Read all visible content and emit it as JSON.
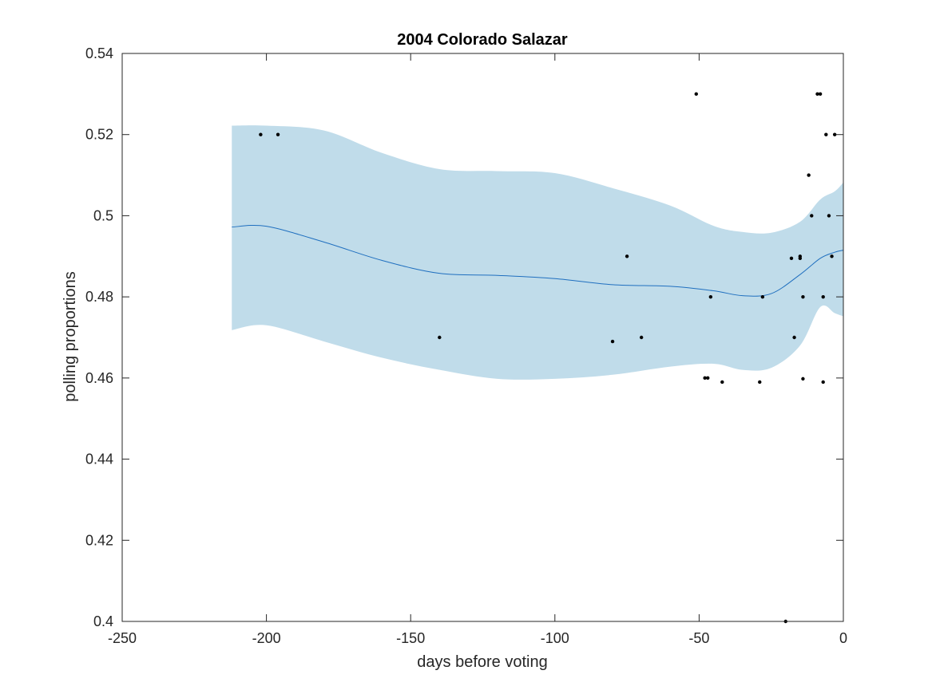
{
  "chart_data": {
    "type": "line",
    "title": "2004 Colorado Salazar",
    "xlabel": "days before voting",
    "ylabel": "polling proportions",
    "xlim": [
      -250,
      0
    ],
    "ylim": [
      0.4,
      0.54
    ],
    "xticks": [
      -250,
      -200,
      -150,
      -100,
      -50,
      0
    ],
    "xtick_labels": [
      "-250",
      "-200",
      "-150",
      "-100",
      "-50",
      "0"
    ],
    "yticks": [
      0.4,
      0.42,
      0.44,
      0.46,
      0.48,
      0.5,
      0.52,
      0.54
    ],
    "ytick_labels": [
      "0.4",
      "0.42",
      "0.44",
      "0.46",
      "0.48",
      "0.5",
      "0.52",
      "0.54"
    ],
    "grid": false,
    "colors": {
      "band": "#c0dcea",
      "line": "#1f6fbf",
      "points": "#000000",
      "axes": "#262626"
    },
    "series": [
      {
        "kind": "trend_line",
        "x": [
          -212,
          -200,
          -180,
          -160,
          -140,
          -120,
          -100,
          -80,
          -60,
          -45,
          -35,
          -25,
          -15,
          -8,
          -3,
          0
        ],
        "y": [
          0.4972,
          0.4974,
          0.4935,
          0.489,
          0.4858,
          0.4853,
          0.4845,
          0.483,
          0.4826,
          0.4815,
          0.4803,
          0.4808,
          0.4855,
          0.4895,
          0.491,
          0.4915
        ]
      },
      {
        "kind": "confidence_band",
        "x": [
          -212,
          -200,
          -180,
          -160,
          -140,
          -120,
          -100,
          -80,
          -60,
          -45,
          -35,
          -25,
          -15,
          -8,
          -3,
          0
        ],
        "upper": [
          0.5222,
          0.5222,
          0.521,
          0.5155,
          0.5115,
          0.511,
          0.5105,
          0.5068,
          0.5025,
          0.4975,
          0.496,
          0.4958,
          0.4985,
          0.504,
          0.506,
          0.5082
        ],
        "lower": [
          0.4718,
          0.473,
          0.469,
          0.465,
          0.462,
          0.4598,
          0.4598,
          0.4608,
          0.4628,
          0.4635,
          0.462,
          0.4625,
          0.468,
          0.4775,
          0.476,
          0.4752
        ]
      },
      {
        "kind": "polls",
        "x": [
          -202,
          -196,
          -140,
          -80,
          -75,
          -70,
          -51,
          -48,
          -47,
          -46,
          -42,
          -29,
          -28,
          -20,
          -18,
          -17,
          -15,
          -15,
          -14,
          -14,
          -12,
          -11,
          -9,
          -8,
          -7,
          -7,
          -6,
          -5,
          -4,
          -3
        ],
        "y": [
          0.52,
          0.52,
          0.47,
          0.469,
          0.49,
          0.47,
          0.53,
          0.46,
          0.46,
          0.48,
          0.459,
          0.459,
          0.48,
          0.4,
          0.4895,
          0.47,
          0.49,
          0.4895,
          0.48,
          0.4598,
          0.51,
          0.5,
          0.53,
          0.53,
          0.48,
          0.459,
          0.52,
          0.5,
          0.49,
          0.52
        ]
      }
    ]
  }
}
